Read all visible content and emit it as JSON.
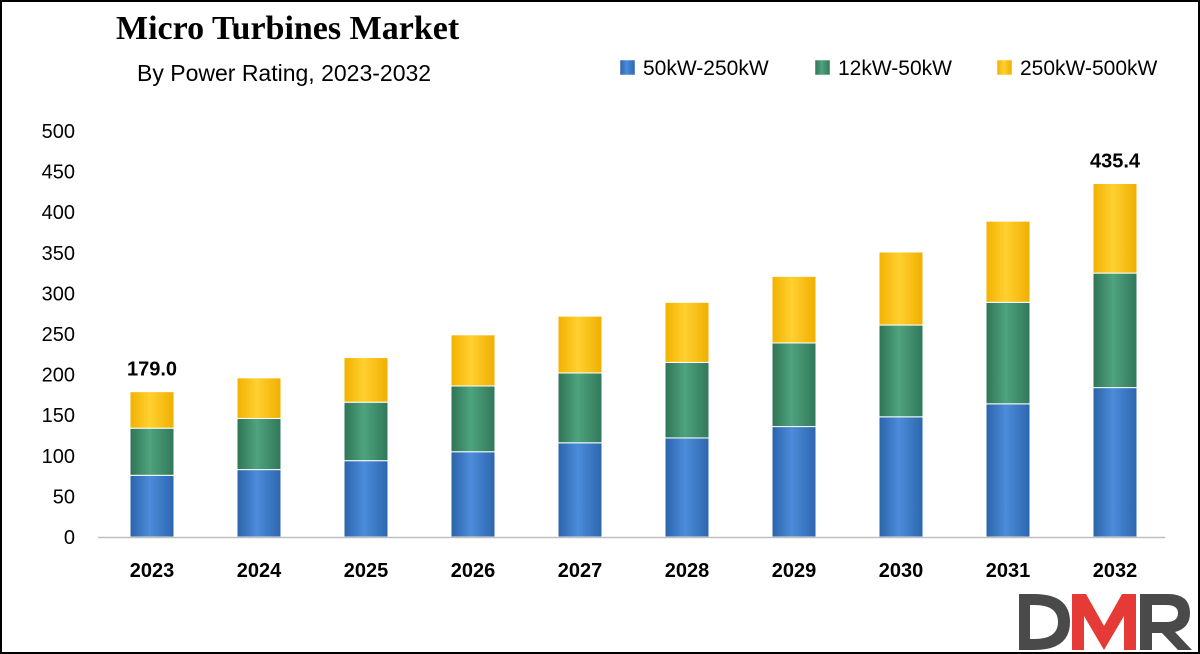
{
  "logo_text": "DMR",
  "chart_data": {
    "type": "bar",
    "stacked": true,
    "title": "Micro Turbines Market",
    "subtitle": "By Power Rating, 2023-2032",
    "categories": [
      "2023",
      "2024",
      "2025",
      "2026",
      "2027",
      "2028",
      "2029",
      "2030",
      "2031",
      "2032"
    ],
    "series": [
      {
        "name": "50kW-250kW",
        "color": "#3b78c4",
        "values": [
          76,
          83,
          94,
          105,
          116,
          122,
          136,
          148,
          164,
          184
        ]
      },
      {
        "name": "12kW-50kW",
        "color": "#3e8e6b",
        "values": [
          58,
          63,
          72,
          81,
          86,
          93,
          103,
          113,
          125,
          141
        ]
      },
      {
        "name": "250kW-500kW",
        "color": "#ffc000",
        "values": [
          45,
          50,
          55,
          63,
          70,
          74,
          82,
          90,
          100,
          110.4
        ]
      }
    ],
    "totals_labels": [
      {
        "category": "2023",
        "text": "179.0"
      },
      {
        "category": "2032",
        "text": "435.4"
      }
    ],
    "y_ticks": [
      "0",
      "50",
      "100",
      "150",
      "200",
      "250",
      "300",
      "350",
      "400",
      "450",
      "500"
    ],
    "ylim": [
      0,
      500
    ],
    "grid": false,
    "legend_position": "top-right",
    "xlabel": "",
    "ylabel": ""
  }
}
